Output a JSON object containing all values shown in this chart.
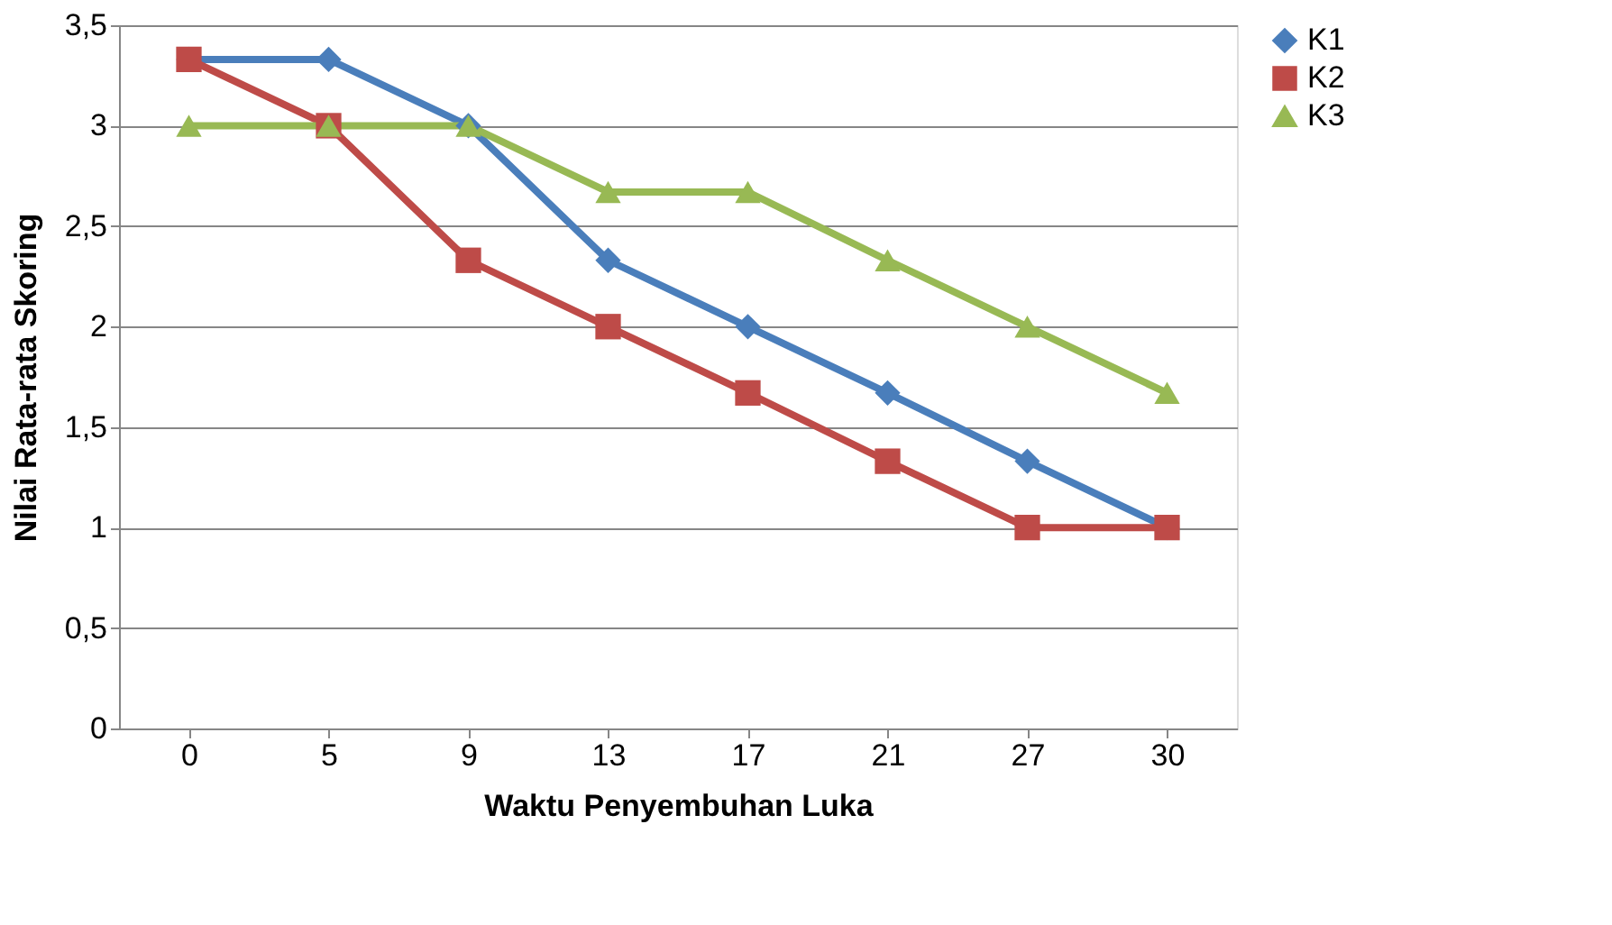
{
  "chart_data": {
    "type": "line",
    "xlabel": "Waktu Penyembuhan Luka",
    "ylabel": "Nilai Rata-rata Skoring",
    "categories": [
      "0",
      "5",
      "9",
      "13",
      "17",
      "21",
      "27",
      "30"
    ],
    "series": [
      {
        "name": "K1",
        "color": "#4a7ebb",
        "marker": "diamond",
        "values": [
          3.33,
          3.33,
          3,
          2.33,
          2,
          1.67,
          1.33,
          1
        ]
      },
      {
        "name": "K2",
        "color": "#be4b48",
        "marker": "square",
        "values": [
          3.33,
          3,
          2.33,
          2,
          1.67,
          1.33,
          1,
          1
        ]
      },
      {
        "name": "K3",
        "color": "#98b954",
        "marker": "triangle",
        "values": [
          3,
          3,
          3,
          2.67,
          2.67,
          2.33,
          2,
          1.67
        ]
      }
    ],
    "ylim": [
      0,
      3.5
    ],
    "yticks": [
      0,
      {
        "value": 0.5,
        "label": "0,5"
      },
      1,
      {
        "value": 1.5,
        "label": "1,5"
      },
      2,
      {
        "value": 2.5,
        "label": "2,5"
      },
      3,
      {
        "value": 3.5,
        "label": "3,5"
      }
    ],
    "grid": "y",
    "legend": "right",
    "line_style": "solid"
  }
}
